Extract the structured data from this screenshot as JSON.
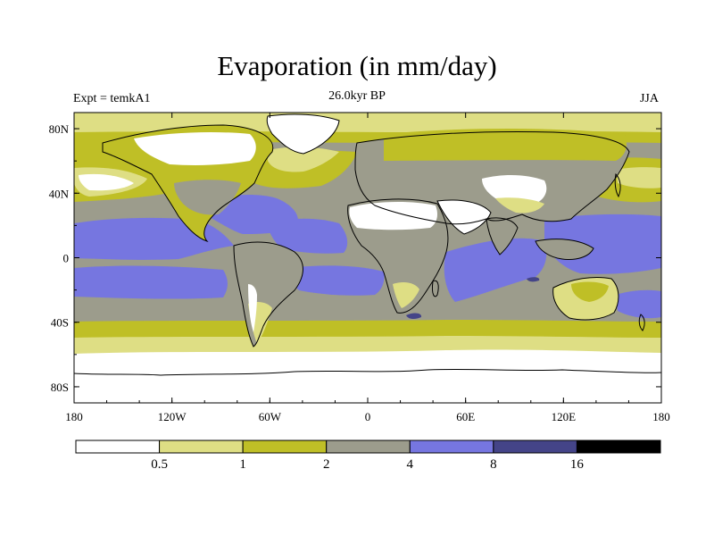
{
  "title": "Evaporation (in mm/day)",
  "subtitle": "26.0kyr BP",
  "left_label": "Expt = temkA1",
  "right_label": "JJA",
  "colors": {
    "lt0_5": "#ffffff",
    "c0_5_1": "#dede84",
    "c1_2": "#bfbf26",
    "c2_4": "#9c9c8c",
    "c4_8": "#7676e0",
    "c8_16": "#444488",
    "gt16": "#000000"
  },
  "chart_data": {
    "type": "heatmap",
    "title": "Evaporation (in mm/day)",
    "subtitle": "26.0kyr BP",
    "xlabel": "",
    "ylabel": "",
    "xlim": [
      -180,
      180
    ],
    "ylim": [
      -90,
      90
    ],
    "x_ticks": [
      {
        "value": -180,
        "label": "180"
      },
      {
        "value": -120,
        "label": "120W"
      },
      {
        "value": -60,
        "label": "60W"
      },
      {
        "value": 0,
        "label": "0"
      },
      {
        "value": 60,
        "label": "60E"
      },
      {
        "value": 120,
        "label": "120E"
      },
      {
        "value": 180,
        "label": "180"
      }
    ],
    "y_ticks": [
      {
        "value": 80,
        "label": "80N"
      },
      {
        "value": 40,
        "label": "40N"
      },
      {
        "value": 0,
        "label": "0"
      },
      {
        "value": -40,
        "label": "40S"
      },
      {
        "value": -80,
        "label": "80S"
      }
    ],
    "colorbar": {
      "levels": [
        0.5,
        1,
        2,
        4,
        8,
        16
      ],
      "labels": [
        "0.5",
        "1",
        "2",
        "4",
        "8",
        "16"
      ],
      "colors": [
        "#ffffff",
        "#dede84",
        "#bfbf26",
        "#9c9c8c",
        "#7676e0",
        "#444488",
        "#000000"
      ]
    }
  }
}
